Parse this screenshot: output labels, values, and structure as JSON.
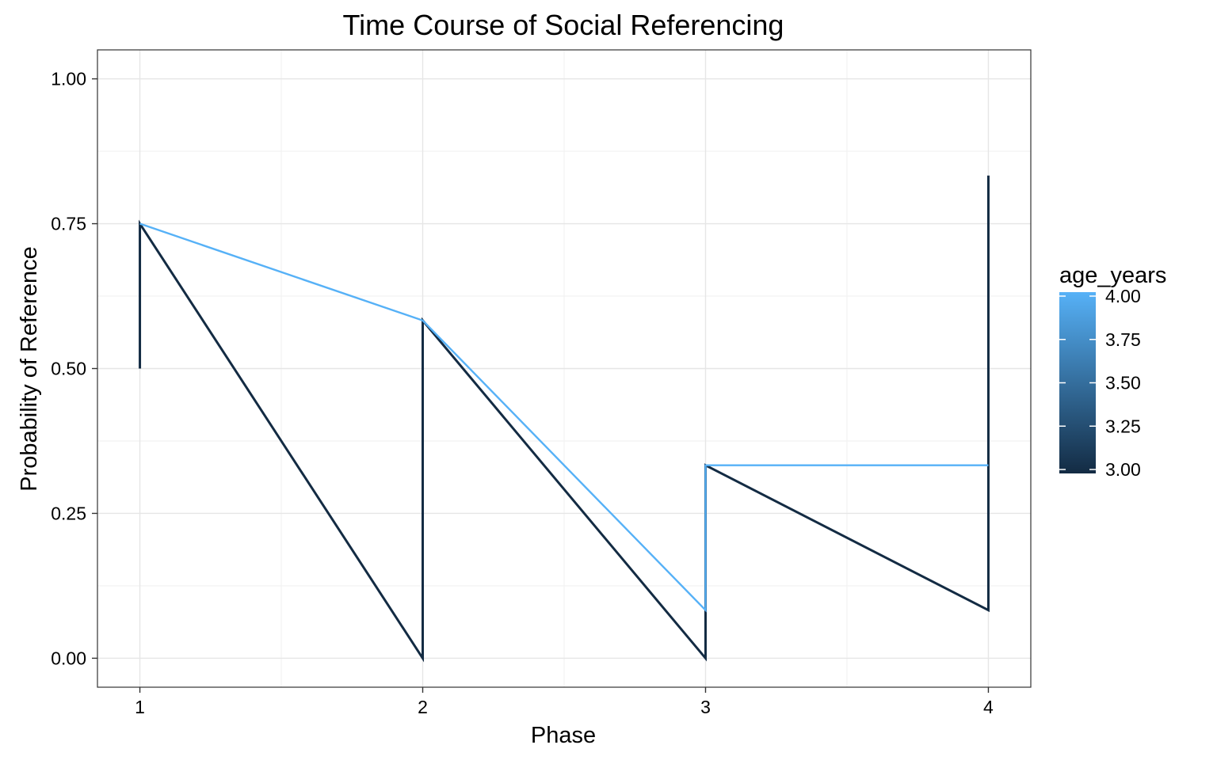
{
  "chart_data": {
    "type": "line",
    "title": "Time Course of Social Referencing",
    "xlabel": "Phase",
    "ylabel": "Probability of Reference",
    "x": [
      1,
      2,
      3,
      4
    ],
    "x_tick_labels": [
      "1",
      "2",
      "3",
      "4"
    ],
    "xlim": [
      0.85,
      4.15
    ],
    "ylim": [
      -0.05,
      1.05
    ],
    "y_ticks": [
      0,
      0.25,
      0.5,
      0.75,
      1
    ],
    "y_tick_labels": [
      "0.00",
      "0.25",
      "0.50",
      "0.75",
      "1.00"
    ],
    "grid": true,
    "series": [
      {
        "age_years": 3.0,
        "color": "#132B43",
        "points": [
          {
            "x": 1,
            "y": 0.5
          },
          {
            "x": 1,
            "y": 0.75
          },
          {
            "x": 2,
            "y": 0.0
          },
          {
            "x": 2,
            "y": 0.583
          },
          {
            "x": 3,
            "y": 0.0
          },
          {
            "x": 3,
            "y": 0.333
          },
          {
            "x": 4,
            "y": 0.083
          },
          {
            "x": 4,
            "y": 0.833
          }
        ]
      },
      {
        "age_years": 4.0,
        "color": "#56B1F7",
        "points": [
          {
            "x": 1,
            "y": 0.75
          },
          {
            "x": 2,
            "y": 0.583
          },
          {
            "x": 3,
            "y": 0.083
          },
          {
            "x": 3,
            "y": 0.333
          },
          {
            "x": 4,
            "y": 0.333
          }
        ]
      }
    ],
    "legend": {
      "title": "age_years",
      "position": "right",
      "type": "colorbar",
      "low_color": "#132B43",
      "high_color": "#56B1F7",
      "range": [
        3.0,
        4.0
      ],
      "breaks": [
        3.0,
        3.25,
        3.5,
        3.75,
        4.0
      ],
      "break_labels": [
        "3.00",
        "3.25",
        "3.50",
        "3.75",
        "4.00"
      ]
    }
  }
}
